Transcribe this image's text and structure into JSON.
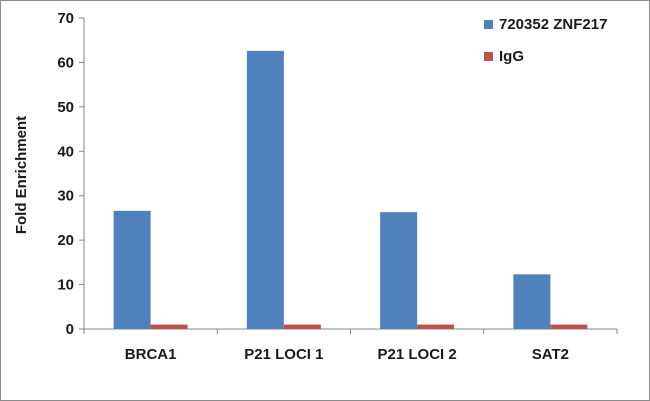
{
  "chart_data": {
    "type": "bar",
    "title": "",
    "xlabel": "",
    "ylabel": "Fold Enrichment",
    "ylim": [
      0,
      70
    ],
    "yticks": [
      0,
      10,
      20,
      30,
      40,
      50,
      60,
      70
    ],
    "categories": [
      "BRCA1",
      "P21 LOCI 1",
      "P21 LOCI 2",
      "SAT2"
    ],
    "series": [
      {
        "name": "720352 ZNF217",
        "color": "#4f81bd",
        "values": [
          26.6,
          62.6,
          26.3,
          12.3
        ]
      },
      {
        "name": "IgG",
        "color": "#c0504d",
        "values": [
          1.0,
          1.0,
          1.0,
          1.0
        ]
      }
    ],
    "grid": false,
    "legend_position": "top-right"
  }
}
